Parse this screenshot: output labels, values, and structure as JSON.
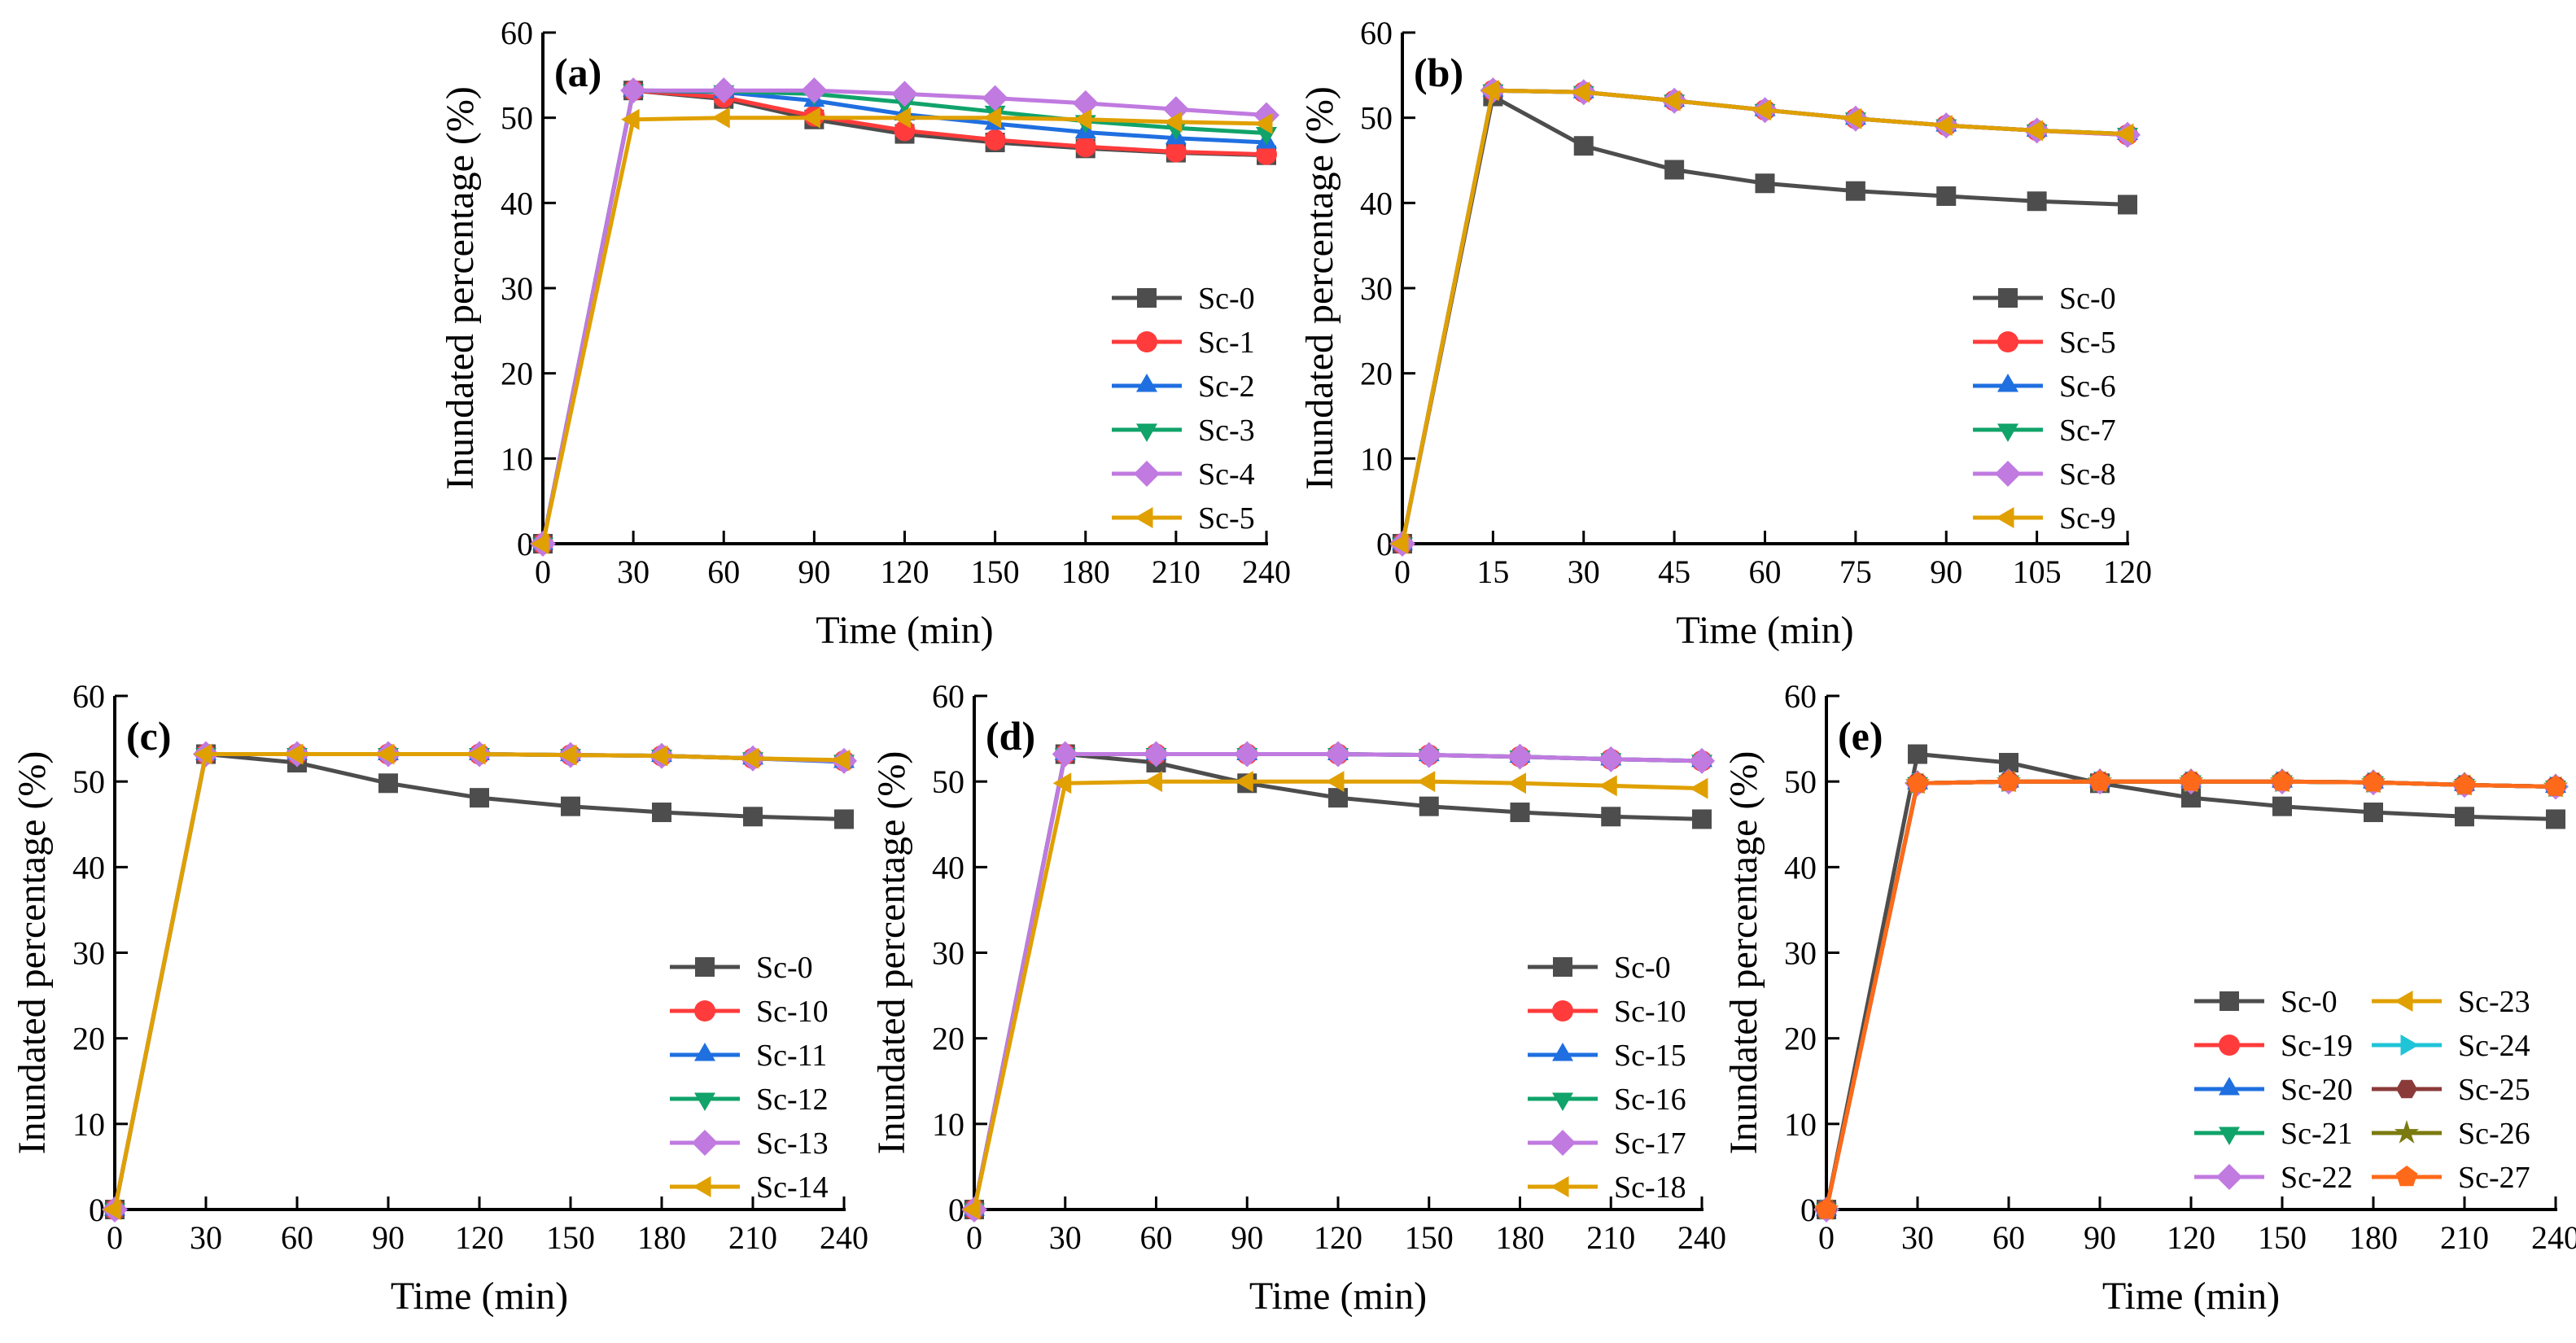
{
  "chart_data": [
    {
      "type": "line",
      "panel_label": "(a)",
      "xlabel": "Time (min)",
      "ylabel": "Inundated percentage (%)",
      "x": [
        0,
        30,
        60,
        90,
        120,
        150,
        180,
        210,
        240
      ],
      "xlim": [
        0,
        240
      ],
      "ylim": [
        0,
        60
      ],
      "xticks": [
        0,
        30,
        60,
        90,
        120,
        150,
        180,
        210,
        240
      ],
      "yticks": [
        0,
        10,
        20,
        30,
        40,
        50,
        60
      ],
      "legend": "bottom-right",
      "grid": false,
      "series": [
        {
          "name": "Sc-0",
          "color": "#4d4d4d",
          "marker": "square",
          "values": [
            0,
            53.2,
            52.2,
            49.8,
            48.1,
            47.1,
            46.4,
            45.9,
            45.6
          ]
        },
        {
          "name": "Sc-1",
          "color": "#ff3b3b",
          "marker": "circle",
          "values": [
            0,
            53.2,
            52.4,
            50.2,
            48.5,
            47.4,
            46.6,
            46.0,
            45.7
          ]
        },
        {
          "name": "Sc-2",
          "color": "#1f6fe0",
          "marker": "triangle-up",
          "values": [
            0,
            53.2,
            53.0,
            52.0,
            50.4,
            49.3,
            48.3,
            47.6,
            47.1
          ]
        },
        {
          "name": "Sc-3",
          "color": "#10a36a",
          "marker": "triangle-down",
          "values": [
            0,
            53.2,
            53.1,
            52.8,
            51.8,
            50.7,
            49.6,
            48.8,
            48.2
          ]
        },
        {
          "name": "Sc-4",
          "color": "#c07ae0",
          "marker": "diamond",
          "values": [
            0,
            53.2,
            53.2,
            53.2,
            52.8,
            52.3,
            51.7,
            51.0,
            50.3
          ]
        },
        {
          "name": "Sc-5",
          "color": "#e0a000",
          "marker": "triangle-left",
          "values": [
            0,
            49.8,
            50.0,
            50.0,
            50.0,
            50.0,
            49.8,
            49.5,
            49.3
          ]
        }
      ]
    },
    {
      "type": "line",
      "panel_label": "(b)",
      "xlabel": "Time (min)",
      "ylabel": "Inundated percentage (%)",
      "x": [
        0,
        15,
        30,
        45,
        60,
        75,
        90,
        105,
        120
      ],
      "xlim": [
        0,
        120
      ],
      "ylim": [
        0,
        60
      ],
      "xticks": [
        0,
        15,
        30,
        45,
        60,
        75,
        90,
        105,
        120
      ],
      "yticks": [
        0,
        10,
        20,
        30,
        40,
        50,
        60
      ],
      "legend": "bottom-right",
      "grid": false,
      "series": [
        {
          "name": "Sc-0",
          "color": "#4d4d4d",
          "marker": "square",
          "values": [
            0,
            52.5,
            46.7,
            43.9,
            42.3,
            41.4,
            40.8,
            40.2,
            39.8
          ]
        },
        {
          "name": "Sc-5",
          "color": "#ff3b3b",
          "marker": "circle",
          "values": [
            0,
            53.2,
            53.0,
            52.0,
            50.9,
            49.9,
            49.1,
            48.5,
            48.0
          ]
        },
        {
          "name": "Sc-6",
          "color": "#1f6fe0",
          "marker": "triangle-up",
          "values": [
            0,
            53.2,
            53.0,
            52.0,
            50.9,
            49.9,
            49.1,
            48.5,
            48.1
          ]
        },
        {
          "name": "Sc-7",
          "color": "#10a36a",
          "marker": "triangle-down",
          "values": [
            0,
            53.2,
            53.0,
            52.0,
            50.9,
            49.9,
            49.1,
            48.5,
            48.1
          ]
        },
        {
          "name": "Sc-8",
          "color": "#c07ae0",
          "marker": "diamond",
          "values": [
            0,
            53.2,
            53.0,
            52.0,
            50.9,
            49.9,
            49.1,
            48.5,
            48.0
          ]
        },
        {
          "name": "Sc-9",
          "color": "#e0a000",
          "marker": "triangle-left",
          "values": [
            0,
            53.2,
            53.0,
            52.0,
            50.9,
            49.9,
            49.1,
            48.5,
            48.1
          ]
        }
      ]
    },
    {
      "type": "line",
      "panel_label": "(c)",
      "xlabel": "Time (min)",
      "ylabel": "Inundated percentage (%)",
      "x": [
        0,
        30,
        60,
        90,
        120,
        150,
        180,
        210,
        240
      ],
      "xlim": [
        0,
        240
      ],
      "ylim": [
        0,
        60
      ],
      "xticks": [
        0,
        30,
        60,
        90,
        120,
        150,
        180,
        210,
        240
      ],
      "yticks": [
        0,
        10,
        20,
        30,
        40,
        50,
        60
      ],
      "legend": "bottom-right",
      "grid": false,
      "series": [
        {
          "name": "Sc-0",
          "color": "#4d4d4d",
          "marker": "square",
          "values": [
            0,
            53.2,
            52.2,
            49.8,
            48.1,
            47.1,
            46.4,
            45.9,
            45.6
          ]
        },
        {
          "name": "Sc-10",
          "color": "#ff3b3b",
          "marker": "circle",
          "values": [
            0,
            53.2,
            53.2,
            53.2,
            53.2,
            53.1,
            53.0,
            52.7,
            52.4
          ]
        },
        {
          "name": "Sc-11",
          "color": "#1f6fe0",
          "marker": "triangle-up",
          "values": [
            0,
            53.2,
            53.2,
            53.2,
            53.2,
            53.1,
            53.0,
            52.7,
            52.3
          ]
        },
        {
          "name": "Sc-12",
          "color": "#10a36a",
          "marker": "triangle-down",
          "values": [
            0,
            53.2,
            53.2,
            53.2,
            53.2,
            53.1,
            53.0,
            52.7,
            52.4
          ]
        },
        {
          "name": "Sc-13",
          "color": "#c07ae0",
          "marker": "diamond",
          "values": [
            0,
            53.2,
            53.2,
            53.2,
            53.2,
            53.1,
            53.0,
            52.7,
            52.4
          ]
        },
        {
          "name": "Sc-14",
          "color": "#e0a000",
          "marker": "triangle-left",
          "values": [
            0,
            53.2,
            53.2,
            53.2,
            53.2,
            53.1,
            53.0,
            52.7,
            52.5
          ]
        }
      ]
    },
    {
      "type": "line",
      "panel_label": "(d)",
      "xlabel": "Time (min)",
      "ylabel": "Inundated percentage (%)",
      "x": [
        0,
        30,
        60,
        90,
        120,
        150,
        180,
        210,
        240
      ],
      "xlim": [
        0,
        240
      ],
      "ylim": [
        0,
        60
      ],
      "xticks": [
        0,
        30,
        60,
        90,
        120,
        150,
        180,
        210,
        240
      ],
      "yticks": [
        0,
        10,
        20,
        30,
        40,
        50,
        60
      ],
      "legend": "bottom-right",
      "grid": false,
      "series": [
        {
          "name": "Sc-0",
          "color": "#4d4d4d",
          "marker": "square",
          "values": [
            0,
            53.2,
            52.2,
            49.8,
            48.1,
            47.1,
            46.4,
            45.9,
            45.6
          ]
        },
        {
          "name": "Sc-10",
          "color": "#ff3b3b",
          "marker": "circle",
          "values": [
            0,
            53.2,
            53.2,
            53.2,
            53.2,
            53.1,
            52.9,
            52.6,
            52.4
          ]
        },
        {
          "name": "Sc-15",
          "color": "#1f6fe0",
          "marker": "triangle-up",
          "values": [
            0,
            53.2,
            53.2,
            53.2,
            53.2,
            53.1,
            52.9,
            52.6,
            52.4
          ]
        },
        {
          "name": "Sc-16",
          "color": "#10a36a",
          "marker": "triangle-down",
          "values": [
            0,
            53.2,
            53.2,
            53.2,
            53.2,
            53.1,
            52.9,
            52.6,
            52.4
          ]
        },
        {
          "name": "Sc-17",
          "color": "#c07ae0",
          "marker": "diamond",
          "values": [
            0,
            53.2,
            53.2,
            53.2,
            53.2,
            53.1,
            52.9,
            52.6,
            52.4
          ]
        },
        {
          "name": "Sc-18",
          "color": "#e0a000",
          "marker": "triangle-left",
          "values": [
            0,
            49.8,
            50.0,
            50.0,
            50.0,
            50.0,
            49.8,
            49.5,
            49.2
          ]
        }
      ]
    },
    {
      "type": "line",
      "panel_label": "(e)",
      "xlabel": "Time (min)",
      "ylabel": "Inundated percentage (%)",
      "x": [
        0,
        30,
        60,
        90,
        120,
        150,
        180,
        210,
        240
      ],
      "xlim": [
        0,
        240
      ],
      "ylim": [
        0,
        60
      ],
      "xticks": [
        0,
        30,
        60,
        90,
        120,
        150,
        180,
        210,
        240
      ],
      "yticks": [
        0,
        10,
        20,
        30,
        40,
        50,
        60
      ],
      "legend": "bottom-right",
      "legend_columns": 2,
      "grid": false,
      "series": [
        {
          "name": "Sc-0",
          "color": "#4d4d4d",
          "marker": "square",
          "values": [
            0,
            53.2,
            52.2,
            49.8,
            48.1,
            47.1,
            46.4,
            45.9,
            45.6
          ]
        },
        {
          "name": "Sc-19",
          "color": "#ff3b3b",
          "marker": "circle",
          "values": [
            0,
            49.8,
            50.0,
            50.0,
            50.0,
            50.0,
            49.9,
            49.6,
            49.4
          ]
        },
        {
          "name": "Sc-20",
          "color": "#1f6fe0",
          "marker": "triangle-up",
          "values": [
            0,
            49.8,
            50.0,
            50.0,
            50.0,
            50.0,
            49.9,
            49.6,
            49.4
          ]
        },
        {
          "name": "Sc-21",
          "color": "#10a36a",
          "marker": "triangle-down",
          "values": [
            0,
            49.8,
            50.0,
            50.0,
            50.0,
            50.0,
            49.9,
            49.6,
            49.4
          ]
        },
        {
          "name": "Sc-22",
          "color": "#c07ae0",
          "marker": "diamond",
          "values": [
            0,
            49.8,
            50.0,
            50.0,
            50.0,
            50.0,
            49.9,
            49.6,
            49.4
          ]
        },
        {
          "name": "Sc-23",
          "color": "#e0a000",
          "marker": "triangle-left",
          "values": [
            0,
            49.8,
            50.0,
            50.0,
            50.0,
            50.0,
            49.9,
            49.6,
            49.4
          ]
        },
        {
          "name": "Sc-24",
          "color": "#20c4d8",
          "marker": "triangle-right",
          "values": [
            0,
            49.8,
            50.0,
            50.0,
            50.0,
            50.0,
            49.9,
            49.6,
            49.4
          ]
        },
        {
          "name": "Sc-25",
          "color": "#8b3a3a",
          "marker": "hexagon",
          "values": [
            0,
            49.8,
            50.0,
            50.0,
            50.0,
            50.0,
            49.9,
            49.6,
            49.4
          ]
        },
        {
          "name": "Sc-26",
          "color": "#7a7a10",
          "marker": "star",
          "values": [
            0,
            49.8,
            50.0,
            50.0,
            50.0,
            50.0,
            49.9,
            49.6,
            49.4
          ]
        },
        {
          "name": "Sc-27",
          "color": "#ff6a1a",
          "marker": "pentagon",
          "values": [
            0,
            49.8,
            50.0,
            50.0,
            50.0,
            50.0,
            49.9,
            49.6,
            49.4
          ]
        }
      ]
    }
  ]
}
